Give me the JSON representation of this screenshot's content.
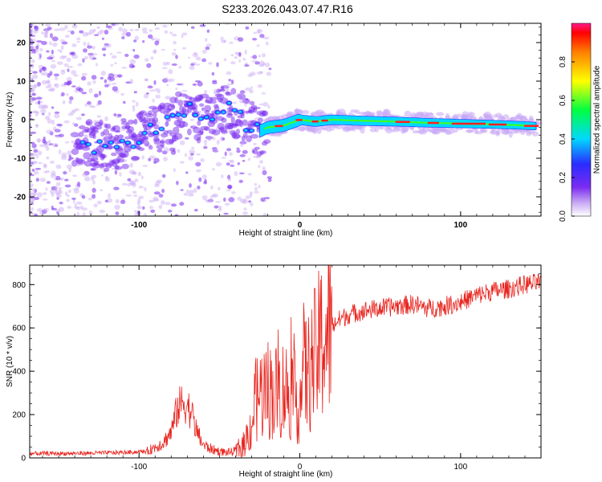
{
  "title": "S233.2026.043.07.47.R16",
  "colors": {
    "frame": "#000000",
    "snr_line": "#e8251f",
    "scatter": "#7a2cf0",
    "scatter_light": "#c9a8f5",
    "background": "#ffffff"
  },
  "chart_data": [
    {
      "type": "heatmap",
      "name": "spectrogram",
      "xlabel": "Height of straight line (km)",
      "ylabel": "Frequency (Hz)",
      "xlim": [
        -168,
        150
      ],
      "ylim": [
        -25,
        25
      ],
      "xticks": [
        -100,
        0,
        100
      ],
      "xtick_labels": [
        "-100",
        "0",
        "100"
      ],
      "yticks": [
        -20,
        -10,
        0,
        10,
        20
      ],
      "ytick_labels": [
        "-20",
        "-10",
        "0",
        "10",
        "20"
      ],
      "ridge": {
        "x": [
          -130,
          -110,
          -95,
          -80,
          -70,
          -60,
          -45,
          -35,
          -25,
          -20,
          -10,
          0,
          10,
          20,
          40,
          60,
          80,
          100,
          120,
          140,
          148
        ],
        "y": [
          -6,
          -7,
          -3,
          0,
          3,
          0,
          3,
          0,
          -3,
          -2,
          -1.5,
          0,
          -0.5,
          0,
          -0.3,
          -0.5,
          -0.8,
          -1,
          -1.2,
          -1.5,
          -1.7
        ]
      },
      "colorbar": {
        "label": "Normalized spectral amplitude",
        "range": [
          0,
          1
        ],
        "ticks": [
          0.0,
          0.2,
          0.4,
          0.6,
          0.8
        ],
        "tick_labels": [
          "0.0",
          "0.2",
          "0.4",
          "0.6",
          "0.8"
        ]
      }
    },
    {
      "type": "line",
      "name": "snr",
      "xlabel": "Height of straight line (km)",
      "ylabel": "SNR (10 * v/v)",
      "xlim": [
        -168,
        150
      ],
      "ylim": [
        0,
        890
      ],
      "xticks": [
        -100,
        0,
        100
      ],
      "xtick_labels": [
        "-100",
        "0",
        "100"
      ],
      "yticks": [
        0,
        200,
        400,
        600,
        800
      ],
      "ytick_labels": [
        "0",
        "200",
        "400",
        "600",
        "800"
      ],
      "series": [
        {
          "name": "SNR",
          "x": [
            -168,
            -150,
            -130,
            -110,
            -95,
            -85,
            -80,
            -76,
            -72,
            -68,
            -64,
            -60,
            -55,
            -50,
            -45,
            -40,
            -35,
            -30,
            -28,
            -25,
            -20,
            -15,
            -10,
            -5,
            0,
            2,
            5,
            10,
            15,
            20,
            25,
            30,
            40,
            50,
            60,
            70,
            80,
            90,
            100,
            110,
            120,
            130,
            140,
            150
          ],
          "values": [
            20,
            20,
            22,
            25,
            30,
            70,
            120,
            230,
            260,
            220,
            120,
            60,
            40,
            30,
            25,
            30,
            60,
            150,
            250,
            300,
            320,
            300,
            320,
            300,
            250,
            420,
            380,
            470,
            560,
            610,
            640,
            660,
            680,
            690,
            700,
            710,
            690,
            700,
            720,
            750,
            770,
            780,
            800,
            810
          ]
        }
      ]
    }
  ]
}
